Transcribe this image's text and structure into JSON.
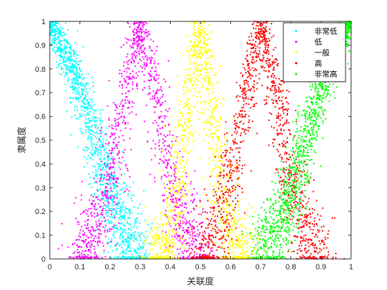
{
  "chart_data": {
    "type": "scatter",
    "title": "",
    "xlabel": "关联度",
    "ylabel": "隶属度",
    "xlim": [
      0,
      1
    ],
    "ylim": [
      0,
      1
    ],
    "xticks": [
      "0",
      "0.1",
      "0.2",
      "0.3",
      "0.4",
      "0.5",
      "0.6",
      "0.7",
      "0.8",
      "0.9",
      "1"
    ],
    "yticks": [
      "0",
      "0.1",
      "0.2",
      "0.3",
      "0.4",
      "0.5",
      "0.6",
      "0.7",
      "0.8",
      "0.9",
      "1"
    ],
    "grid": false,
    "legend_position": "top-right",
    "series": [
      {
        "name": "非常低",
        "color": "#00ffff",
        "points": [
          [
            0.0,
            1.0
          ],
          [
            0.05,
            0.88
          ],
          [
            0.1,
            0.72
          ],
          [
            0.15,
            0.5
          ],
          [
            0.2,
            0.28
          ],
          [
            0.25,
            0.12
          ],
          [
            0.3,
            0.0
          ]
        ]
      },
      {
        "name": "低",
        "color": "#ff00ff",
        "points": [
          [
            0.1,
            0.0
          ],
          [
            0.15,
            0.1
          ],
          [
            0.2,
            0.35
          ],
          [
            0.25,
            0.68
          ],
          [
            0.3,
            1.0
          ],
          [
            0.35,
            0.7
          ],
          [
            0.4,
            0.35
          ],
          [
            0.45,
            0.1
          ],
          [
            0.5,
            0.0
          ]
        ]
      },
      {
        "name": "一般",
        "color": "#ffff00",
        "points": [
          [
            0.35,
            0.0
          ],
          [
            0.4,
            0.1
          ],
          [
            0.45,
            0.55
          ],
          [
            0.5,
            1.0
          ],
          [
            0.55,
            0.55
          ],
          [
            0.6,
            0.1
          ],
          [
            0.65,
            0.0
          ]
        ]
      },
      {
        "name": "高",
        "color": "#ff0000",
        "points": [
          [
            0.5,
            0.0
          ],
          [
            0.55,
            0.1
          ],
          [
            0.6,
            0.35
          ],
          [
            0.65,
            0.68
          ],
          [
            0.7,
            1.0
          ],
          [
            0.75,
            0.7
          ],
          [
            0.8,
            0.35
          ],
          [
            0.85,
            0.1
          ],
          [
            0.9,
            0.0
          ]
        ]
      },
      {
        "name": "非常高",
        "color": "#00ff00",
        "points": [
          [
            0.7,
            0.0
          ],
          [
            0.75,
            0.12
          ],
          [
            0.8,
            0.28
          ],
          [
            0.85,
            0.5
          ],
          [
            0.9,
            0.72
          ],
          [
            0.95,
            0.88
          ],
          [
            1.0,
            1.0
          ]
        ]
      }
    ]
  }
}
